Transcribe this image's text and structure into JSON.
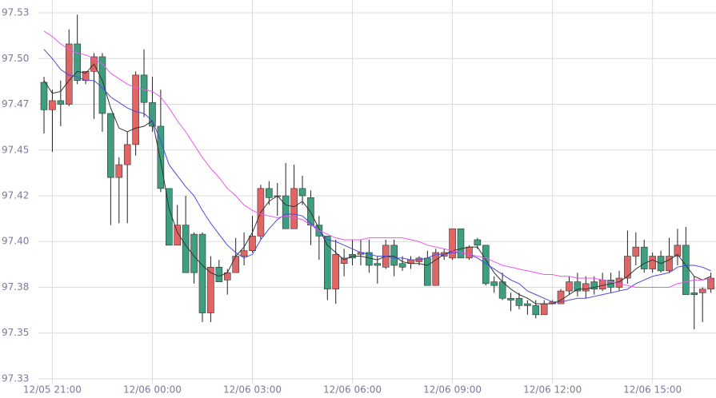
{
  "chart_data": {
    "type": "candlestick",
    "categories": [
      null,
      "12/05 21:00",
      null,
      null,
      null,
      null,
      null,
      null,
      null,
      null,
      null,
      null,
      null,
      "12/06 00:00",
      null,
      null,
      null,
      null,
      null,
      null,
      null,
      null,
      null,
      null,
      null,
      "12/06 03:00",
      null,
      null,
      null,
      null,
      null,
      null,
      null,
      null,
      null,
      null,
      null,
      "12/06 06:00",
      null,
      null,
      null,
      null,
      null,
      null,
      null,
      null,
      null,
      null,
      null,
      "12/06 09:00",
      null,
      null,
      null,
      null,
      null,
      null,
      null,
      null,
      null,
      null,
      null,
      "12/06 12:00",
      null,
      null,
      null,
      null,
      null,
      null,
      null,
      null,
      null,
      null,
      null,
      "12/06 15:00",
      null,
      null,
      null,
      null,
      null,
      null,
      null
    ],
    "open": [
      97.487,
      97.472,
      97.477,
      97.475,
      97.508,
      97.488,
      97.493,
      97.501,
      97.47,
      97.435,
      97.442,
      97.453,
      97.491,
      97.476,
      97.463,
      97.429,
      97.398,
      97.409,
      97.404,
      97.404,
      97.361,
      97.386,
      97.379,
      97.383,
      97.392,
      97.395,
      97.403,
      97.429,
      97.425,
      97.425,
      97.407,
      97.429,
      97.424,
      97.409,
      97.403,
      97.374,
      97.388,
      97.393,
      97.393,
      97.394,
      97.388,
      97.386,
      97.398,
      97.388,
      97.388,
      97.389,
      97.391,
      97.376,
      97.392,
      97.391,
      97.407,
      97.391,
      97.401,
      97.398,
      97.378,
      97.378,
      97.369,
      97.369,
      97.366,
      97.365,
      97.36,
      97.366,
      97.366,
      97.373,
      97.378,
      97.373,
      97.378,
      97.374,
      97.379,
      97.375,
      97.38,
      97.392,
      97.397,
      97.385,
      97.392,
      97.384,
      97.392,
      97.398,
      97.372,
      97.372,
      97.374
    ],
    "high": [
      97.49,
      97.483,
      97.488,
      97.516,
      97.524,
      97.493,
      97.503,
      97.503,
      97.47,
      97.446,
      97.46,
      97.493,
      97.505,
      97.49,
      97.483,
      97.429,
      97.42,
      97.425,
      97.405,
      97.405,
      97.392,
      97.39,
      97.385,
      97.402,
      97.405,
      97.414,
      97.431,
      97.433,
      97.432,
      97.443,
      97.442,
      97.436,
      97.428,
      97.414,
      97.403,
      97.401,
      97.396,
      97.401,
      97.401,
      97.401,
      97.392,
      97.401,
      97.401,
      97.392,
      97.392,
      97.392,
      97.395,
      97.396,
      97.396,
      97.407,
      97.407,
      97.398,
      97.402,
      97.398,
      97.381,
      97.383,
      97.372,
      97.372,
      97.368,
      97.368,
      97.368,
      97.368,
      97.374,
      97.381,
      97.383,
      97.381,
      97.381,
      97.383,
      97.383,
      97.384,
      97.406,
      97.405,
      97.401,
      97.394,
      97.395,
      97.402,
      97.407,
      97.408,
      97.381,
      97.375,
      97.383
    ],
    "low": [
      97.459,
      97.449,
      97.463,
      97.474,
      97.486,
      97.486,
      97.467,
      97.46,
      97.409,
      97.41,
      97.41,
      97.447,
      97.468,
      97.46,
      97.427,
      97.398,
      97.398,
      97.383,
      97.377,
      97.356,
      97.356,
      97.378,
      97.371,
      97.383,
      97.387,
      97.394,
      97.401,
      97.42,
      97.414,
      97.407,
      97.407,
      97.42,
      97.398,
      97.39,
      97.368,
      97.366,
      97.381,
      97.387,
      97.387,
      97.383,
      97.377,
      97.385,
      97.381,
      97.384,
      97.385,
      97.387,
      97.376,
      97.376,
      97.39,
      97.39,
      97.391,
      97.39,
      97.396,
      97.376,
      97.372,
      97.368,
      97.362,
      97.363,
      97.36,
      97.358,
      97.36,
      97.366,
      97.366,
      97.371,
      97.37,
      97.369,
      97.371,
      97.373,
      97.372,
      97.373,
      97.377,
      97.387,
      97.383,
      97.383,
      97.383,
      97.383,
      97.387,
      97.371,
      97.352,
      97.356,
      97.372
    ],
    "close": [
      97.472,
      97.477,
      97.475,
      97.508,
      97.488,
      97.493,
      97.501,
      97.47,
      97.435,
      97.442,
      97.453,
      97.491,
      97.476,
      97.463,
      97.429,
      97.398,
      97.409,
      97.383,
      97.383,
      97.361,
      97.386,
      97.378,
      97.383,
      97.392,
      97.395,
      97.403,
      97.429,
      97.424,
      97.425,
      97.407,
      97.429,
      97.425,
      97.409,
      97.403,
      97.374,
      97.393,
      97.391,
      97.391,
      97.394,
      97.387,
      97.387,
      97.398,
      97.387,
      97.386,
      97.39,
      97.391,
      97.376,
      97.394,
      97.394,
      97.407,
      97.391,
      97.397,
      97.398,
      97.377,
      97.376,
      97.369,
      97.368,
      97.365,
      97.365,
      97.36,
      97.366,
      97.367,
      97.373,
      97.378,
      97.373,
      97.377,
      97.374,
      97.379,
      97.375,
      97.38,
      97.392,
      97.397,
      97.385,
      97.392,
      97.384,
      97.392,
      97.398,
      97.371,
      97.371,
      97.374,
      97.38
    ],
    "up_color": "#e06666",
    "down_color": "#3d9f7f",
    "overlays": [
      {
        "color": "#333333",
        "values": [
          97.488,
          97.481,
          97.482,
          97.488,
          97.493,
          97.492,
          97.497,
          97.488,
          97.473,
          97.462,
          97.46,
          97.462,
          97.463,
          97.466,
          97.444,
          97.418,
          97.405,
          97.398,
          97.392,
          97.387,
          97.383,
          97.381,
          97.383,
          97.392,
          97.397,
          97.405,
          97.416,
          97.422,
          97.425,
          97.42,
          97.419,
          97.422,
          97.416,
          97.407,
          97.398,
          97.394,
          97.39,
          97.392,
          97.392,
          97.391,
          97.39,
          97.392,
          97.392,
          97.389,
          97.388,
          97.388,
          97.387,
          97.39,
          97.393,
          97.395,
          97.396,
          97.397,
          97.397,
          97.39,
          97.383,
          97.378,
          97.374,
          97.371,
          97.369,
          97.366,
          97.366,
          97.366,
          97.368,
          97.371,
          97.374,
          97.374,
          97.375,
          97.376,
          97.377,
          97.378,
          97.381,
          97.385,
          97.388,
          97.39,
          97.388,
          97.39,
          97.393,
          97.387,
          97.381,
          97.379,
          97.381
        ]
      },
      {
        "color": "#4a4ae0",
        "values": [
          97.505,
          97.5,
          97.494,
          97.491,
          97.49,
          97.488,
          97.488,
          97.484,
          97.479,
          97.476,
          97.473,
          97.471,
          97.47,
          97.466,
          97.455,
          97.442,
          97.436,
          97.43,
          97.425,
          97.417,
          97.41,
          97.404,
          97.398,
          97.394,
          97.391,
          97.393,
          97.401,
          97.407,
          97.412,
          97.415,
          97.415,
          97.414,
          97.41,
          97.406,
          97.401,
          97.4,
          97.398,
          97.396,
          97.394,
          97.393,
          97.392,
          97.392,
          97.391,
          97.391,
          97.39,
          97.39,
          97.391,
          97.393,
          97.393,
          97.394,
          97.394,
          97.393,
          97.391,
          97.388,
          97.385,
          97.382,
          97.379,
          97.377,
          97.373,
          97.371,
          97.369,
          97.367,
          97.367,
          97.368,
          97.369,
          97.369,
          97.37,
          97.371,
          97.372,
          97.373,
          97.374,
          97.377,
          97.379,
          97.381,
          97.382,
          97.383,
          97.386,
          97.387,
          97.387,
          97.386,
          97.384
        ]
      },
      {
        "color": "#ee55ee",
        "values": [
          97.515,
          97.512,
          97.508,
          97.505,
          97.503,
          97.502,
          97.5,
          97.497,
          97.492,
          97.489,
          97.486,
          97.484,
          97.483,
          97.482,
          97.479,
          97.473,
          97.466,
          97.46,
          97.453,
          97.446,
          97.44,
          97.435,
          97.429,
          97.425,
          97.42,
          97.417,
          97.415,
          97.414,
          97.413,
          97.414,
          97.413,
          97.412,
          97.409,
          97.406,
          97.404,
          97.402,
          97.401,
          97.401,
          97.401,
          97.402,
          97.402,
          97.402,
          97.402,
          97.402,
          97.401,
          97.4,
          97.398,
          97.397,
          97.396,
          97.395,
          97.394,
          97.393,
          97.392,
          97.391,
          97.389,
          97.387,
          97.386,
          97.385,
          97.384,
          97.383,
          97.382,
          97.382,
          97.381,
          97.381,
          97.38,
          97.38,
          97.38,
          97.379,
          97.378,
          97.377,
          97.376,
          97.375,
          97.375,
          97.375,
          97.375,
          97.375,
          97.377,
          97.378,
          97.379,
          97.379,
          97.38
        ]
      }
    ],
    "ylim": [
      97.318,
      97.532
    ],
    "yticks": [
      {
        "value": 97.525,
        "label": "97.53"
      },
      {
        "value": 97.5,
        "label": "97.50"
      },
      {
        "value": 97.475,
        "label": "97.47"
      },
      97.45,
      {
        "value": 97.425,
        "label": "97.42"
      },
      {
        "value": 97.4,
        "label": "97.40"
      },
      {
        "value": 97.375,
        "label": "97.38"
      },
      97.35,
      {
        "value": 97.325,
        "label": "97.33"
      }
    ],
    "grid": true
  }
}
